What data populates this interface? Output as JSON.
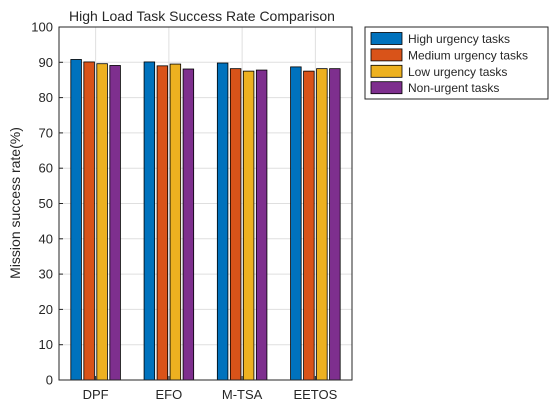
{
  "chart_data": {
    "type": "bar",
    "title": "High Load Task Success Rate Comparison",
    "xlabel": "",
    "ylabel": "Mission success rate(%)",
    "ylim": [
      0,
      100
    ],
    "yticks": [
      0,
      10,
      20,
      30,
      40,
      50,
      60,
      70,
      80,
      90,
      100
    ],
    "grid": true,
    "legend_position": "outside-top-right",
    "categories": [
      "DPF",
      "EFO",
      "M-TSA",
      "EETOS"
    ],
    "series": [
      {
        "name": "High urgency tasks",
        "color": "#0072BD",
        "values": [
          90.8,
          90.1,
          89.8,
          88.7
        ]
      },
      {
        "name": "Medium urgency tasks",
        "color": "#D95319",
        "values": [
          90.1,
          89.0,
          88.2,
          87.5
        ]
      },
      {
        "name": "Low urgency tasks",
        "color": "#EDB120",
        "values": [
          89.6,
          89.5,
          87.5,
          88.2
        ]
      },
      {
        "name": "Non-urgent tasks",
        "color": "#7E2F8E",
        "values": [
          89.1,
          88.1,
          87.8,
          88.2
        ]
      }
    ]
  }
}
